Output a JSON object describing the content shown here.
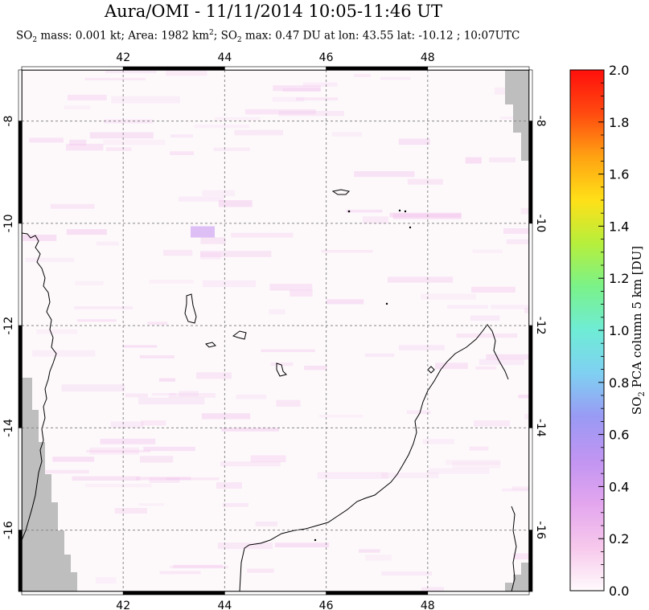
{
  "title": "Aura/OMI - 11/11/2014 10:05-11:46 UT",
  "subtitle": {
    "so2_mass": "SO",
    "sub2": "2",
    "mass_text": " mass: 0.001 kt; Area: 1982 km",
    "sup2": "2",
    "rest": "; SO",
    "sub2b": "2",
    "max_text": " max: 0.47 DU at lon: 43.55 lat: -10.12 ; 10:07UTC"
  },
  "chart_data": {
    "type": "heatmap",
    "title": "Aura/OMI - 11/11/2014 10:05-11:46 UT",
    "xlabel": "",
    "ylabel": "",
    "xlim": [
      40.0,
      50.0
    ],
    "ylim": [
      -17.2,
      -7.0
    ],
    "x_ticks": [
      42,
      44,
      46,
      48
    ],
    "x_tick_labels": [
      "42",
      "44",
      "46",
      "48"
    ],
    "y_ticks": [
      -8,
      -10,
      -12,
      -14,
      -16
    ],
    "y_tick_labels": [
      "-8",
      "-10",
      "-12",
      "-14",
      "-16"
    ],
    "grid": true,
    "so2_max": {
      "value": 0.47,
      "lon": 43.55,
      "lat": -10.12
    },
    "colorbar": {
      "label": "SO2 PCA column 5 km [DU]",
      "label_parts": [
        "SO",
        "2",
        " PCA column 5 km [DU]"
      ],
      "min": 0.0,
      "max": 2.0,
      "ticks": [
        "0.0",
        "0.2",
        "0.4",
        "0.6",
        "0.8",
        "1.0",
        "1.2",
        "1.4",
        "1.6",
        "1.8",
        "2.0"
      ],
      "colors": [
        "#fffafc",
        "#f7c8ec",
        "#e3a6ee",
        "#c195f2",
        "#9a9af4",
        "#7fd0f2",
        "#6fecd6",
        "#7af28a",
        "#b6ef3c",
        "#ffe018",
        "#ffa212",
        "#ff4a10",
        "#ff0f0c"
      ]
    }
  }
}
